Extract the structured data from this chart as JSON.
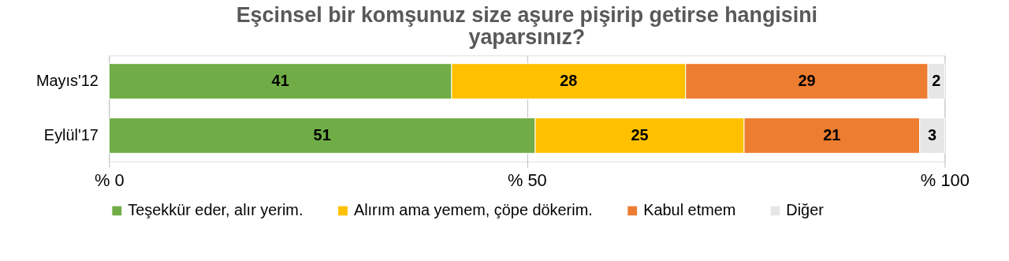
{
  "chart_data": {
    "type": "bar",
    "orientation": "horizontal",
    "stacked": true,
    "title": "Eşcinsel bir komşunuz size aşure pişirip getirse hangisini yaparsınız?",
    "categories": [
      "Mayıs'12",
      "Eylül'17"
    ],
    "series": [
      {
        "name": "Teşekkür eder, alır yerim.",
        "color": "#70ad47",
        "values": [
          41,
          51
        ]
      },
      {
        "name": "Alırım ama yemem, çöpe dökerim.",
        "color": "#ffc000",
        "values": [
          28,
          25
        ]
      },
      {
        "name": "Kabul etmem",
        "color": "#ed7d31",
        "values": [
          29,
          21
        ]
      },
      {
        "name": "Diğer",
        "color": "#e7e6e6",
        "values": [
          2,
          3
        ]
      }
    ],
    "xlim": [
      0,
      100
    ],
    "xticks": [
      {
        "value": 0,
        "label": "% 0"
      },
      {
        "value": 50,
        "label": "% 50"
      },
      {
        "value": 100,
        "label": "% 100"
      }
    ],
    "grid": "x",
    "legend": "bottom",
    "data_labels": true
  }
}
